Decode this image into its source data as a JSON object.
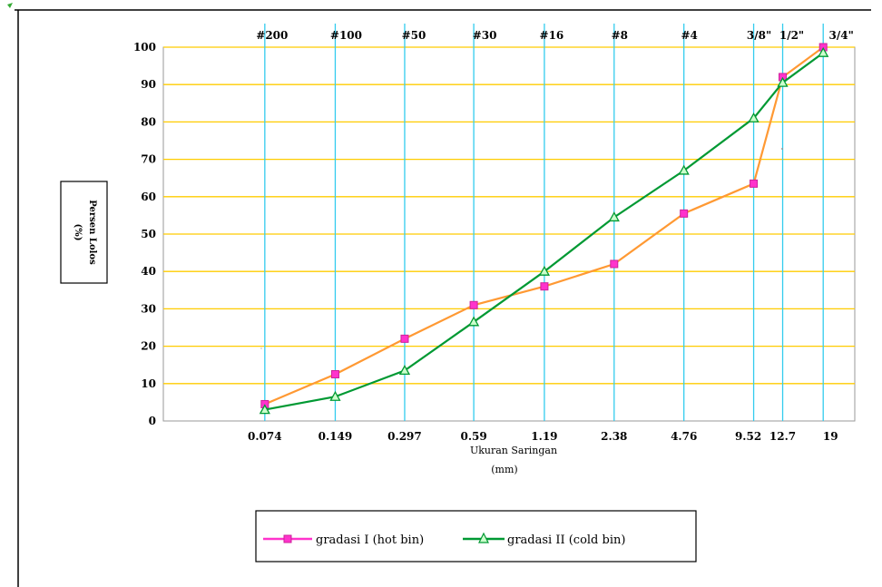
{
  "chart_data": {
    "type": "line",
    "xlabel": "Ukuran Saringan",
    "xlabel_unit": "(mm)",
    "ylabel": "Persen Lolos",
    "ylabel_unit": "(%)",
    "ylim": [
      0,
      100
    ],
    "yticks": [
      "0",
      "10",
      "20",
      "30",
      "40",
      "50",
      "60",
      "70",
      "80",
      "90",
      "100"
    ],
    "x_scale": "log",
    "categories": [
      "0.074",
      "0.149",
      "0.297",
      "0.59",
      "1.19",
      "2.38",
      "4.76",
      "9.52",
      "12.7",
      "19"
    ],
    "x_values": [
      0.074,
      0.149,
      0.297,
      0.59,
      1.19,
      2.38,
      4.76,
      9.52,
      12.7,
      19
    ],
    "sieve_labels": [
      "#200",
      "#100",
      "#50",
      "#30",
      "#16",
      "#8",
      "#4",
      "3/8\"",
      "1/2\"",
      "3/4\""
    ],
    "grid": {
      "horizontal": true,
      "vertical": true
    },
    "legend_position": "bottom",
    "series": [
      {
        "name": "gradasi I (hot bin)",
        "line_color": "#ff9933",
        "marker_color": "#ff33cc",
        "marker": "square",
        "x": [
          0.074,
          0.149,
          0.297,
          0.59,
          1.19,
          2.38,
          4.76,
          9.52,
          12.7,
          19
        ],
        "values": [
          4.5,
          12.5,
          22,
          31,
          36,
          42,
          55.5,
          63.5,
          92,
          100
        ]
      },
      {
        "name": "gradasi II (cold bin)",
        "line_color": "#009933",
        "marker_color": "#009933",
        "marker": "triangle",
        "x": [
          0.074,
          0.149,
          0.297,
          0.59,
          1.19,
          2.38,
          4.76,
          9.52,
          12.7,
          19
        ],
        "values": [
          3,
          6.5,
          13.5,
          26.5,
          40,
          54.5,
          67,
          81,
          90.5,
          98.5
        ]
      }
    ]
  }
}
